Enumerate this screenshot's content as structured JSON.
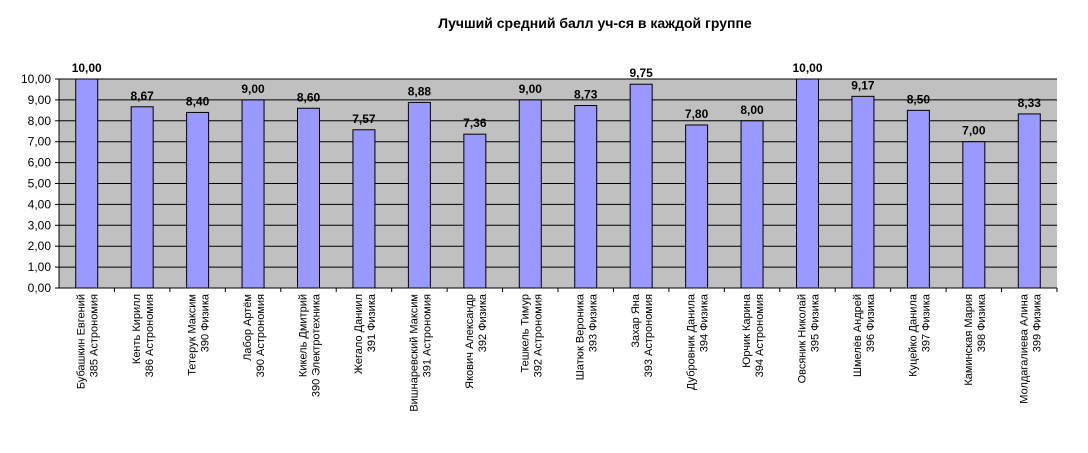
{
  "chart_data": {
    "type": "bar",
    "title": "Лучший средний балл уч-ся в каждой группе",
    "xlabel": "",
    "ylabel": "",
    "ylim": [
      0,
      10
    ],
    "ytick_step": 1,
    "ytick_labels": [
      "0,00",
      "1,00",
      "2,00",
      "3,00",
      "4,00",
      "5,00",
      "6,00",
      "7,00",
      "8,00",
      "9,00",
      "10,00"
    ],
    "grid": true,
    "legend": "none",
    "categories": [
      {
        "line1": "Бубашкин Евгений",
        "line2": "385 Астрономия"
      },
      {
        "line1": "Кенть Кирилл",
        "line2": "386 Астрономия"
      },
      {
        "line1": "Тетерук Максим",
        "line2": "390 Физика"
      },
      {
        "line1": "Лабор Артём",
        "line2": "390 Астрономия"
      },
      {
        "line1": "Кикель Дмитрий",
        "line2": "390 Электротехника"
      },
      {
        "line1": "Жегало  Даниил",
        "line2": "391  Физика"
      },
      {
        "line1": "Вишнаревский Максим",
        "line2": "391 Астрономия"
      },
      {
        "line1": "Якович Александр",
        "line2": "392 Физика"
      },
      {
        "line1": "Тешкель Тимур",
        "line2": "392 Астрономия"
      },
      {
        "line1": "Шатюк Вероника",
        "line2": "393 Физика"
      },
      {
        "line1": "Захар Яна",
        "line2": "393 Астрономия"
      },
      {
        "line1": "Дубровник Данила",
        "line2": "394 Физика"
      },
      {
        "line1": "Юрчик Карина",
        "line2": "394 Астрономия"
      },
      {
        "line1": "Овсяник Николай",
        "line2": "395 Физика"
      },
      {
        "line1": "Шмелёв  Андрей",
        "line2": "396 Физика"
      },
      {
        "line1": "Куцейко Данила",
        "line2": "397 Физика"
      },
      {
        "line1": "Каминская Мария",
        "line2": "398 Физика"
      },
      {
        "line1": "Молдагалиева  Алина",
        "line2": "399 Физика"
      }
    ],
    "values": [
      10.0,
      8.67,
      8.4,
      9.0,
      8.6,
      7.57,
      8.88,
      7.36,
      9.0,
      8.73,
      9.75,
      7.8,
      8.0,
      10.0,
      9.17,
      8.5,
      7.0,
      8.33
    ],
    "data_labels": [
      "10,00",
      "8,67",
      "8,40",
      "9,00",
      "8,60",
      "7,57",
      "8,88",
      "7,36",
      "9,00",
      "8,73",
      "9,75",
      "7,80",
      "8,00",
      "10,00",
      "9,17",
      "8,50",
      "7,00",
      "8,33"
    ],
    "colors": {
      "plot_background": "#c0c0c0",
      "bar_fill": "#9999ff",
      "bar_stroke": "#000000",
      "gridline": "#000000",
      "axis": "#000000"
    }
  }
}
